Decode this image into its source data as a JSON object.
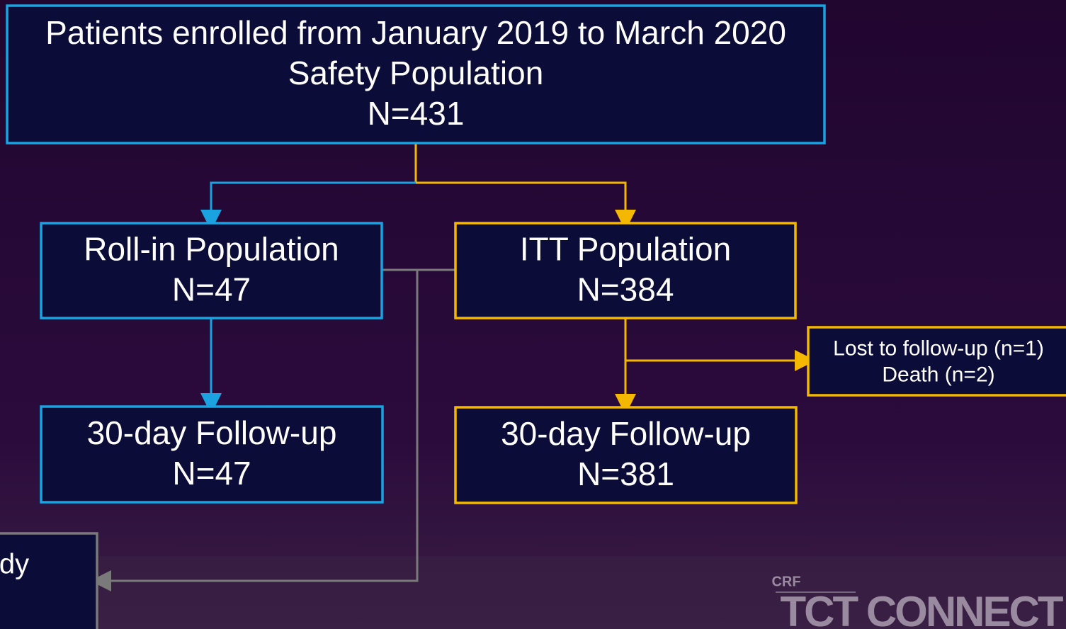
{
  "nodes": [
    {
      "lines": [
        "Patients enrolled from January 2019 to March 2020",
        "Safety Population",
        "N=431"
      ]
    },
    {
      "lines": [
        "Roll-in Population",
        "N=47"
      ]
    },
    {
      "lines": [
        "ITT Population",
        "N=384"
      ]
    },
    {
      "lines": [
        "30-day Follow-up",
        "N=47"
      ]
    },
    {
      "lines": [
        "30-day Follow-up",
        "N=381"
      ]
    },
    {
      "lines": [
        "Lost to follow-up (n=1)",
        "Death (n=2)"
      ]
    },
    {
      "lines": [
        "dy"
      ]
    }
  ],
  "logo": {
    "small": "CRF",
    "large": "TCT CONNECT"
  }
}
